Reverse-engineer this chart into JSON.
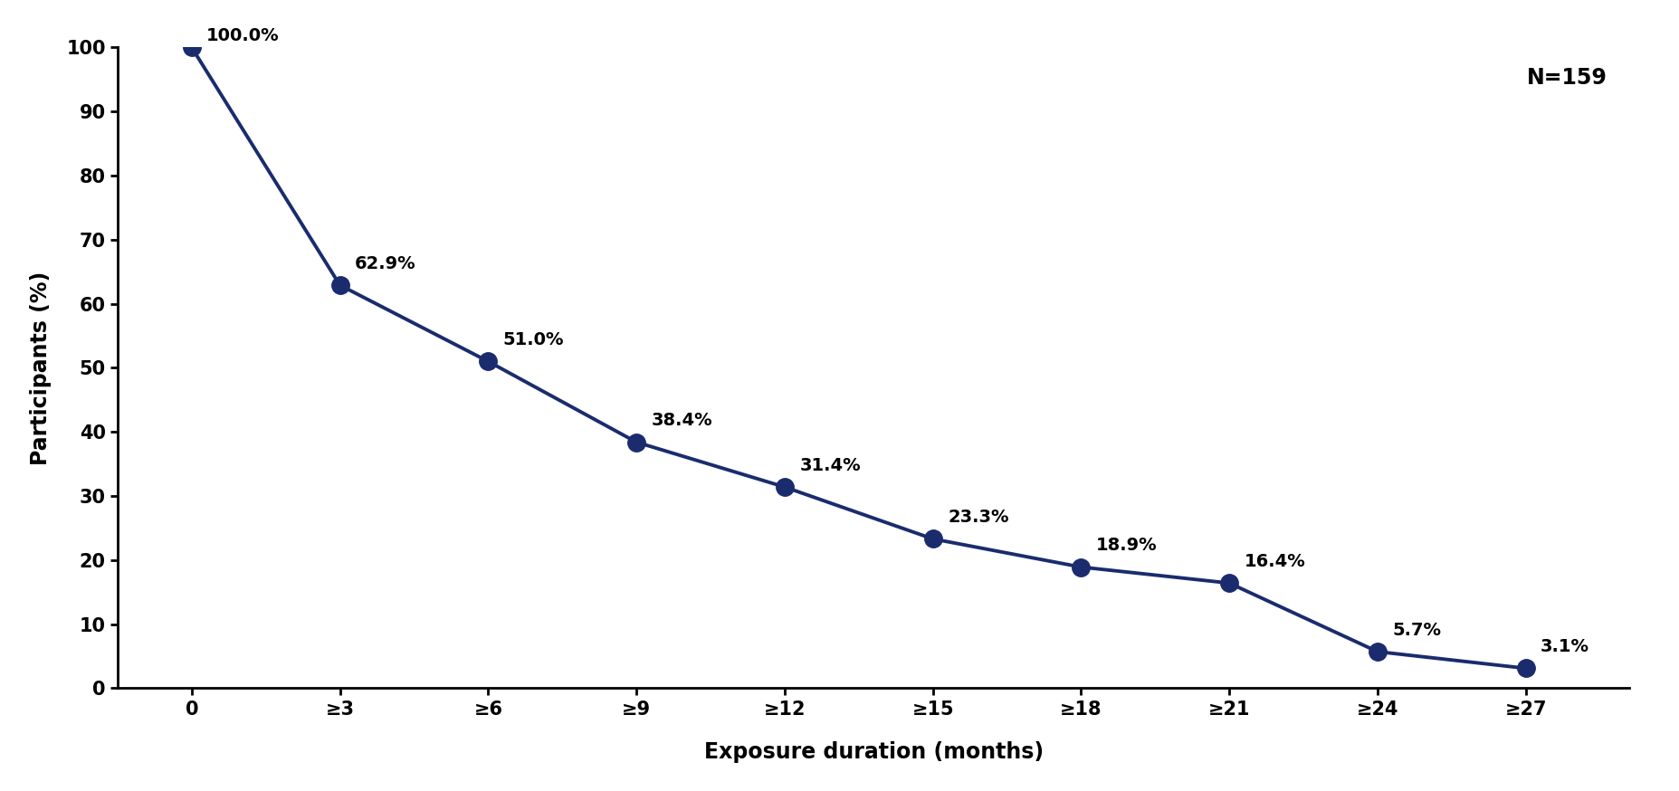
{
  "x_values": [
    0,
    1,
    2,
    3,
    4,
    5,
    6,
    7,
    8,
    9
  ],
  "y_values": [
    100.0,
    62.9,
    51.0,
    38.4,
    31.4,
    23.3,
    18.9,
    16.4,
    5.7,
    3.1
  ],
  "labels": [
    "100.0%",
    "62.9%",
    "51.0%",
    "38.4%",
    "31.4%",
    "23.3%",
    "18.9%",
    "16.4%",
    "5.7%",
    "3.1%"
  ],
  "x_tick_labels": [
    "0",
    "≥3",
    "≥6",
    "≥9",
    "≥12",
    "≥15",
    "≥18",
    "≥21",
    "≥24",
    "≥27"
  ],
  "xlabel": "Exposure duration (months)",
  "ylabel": "Participants (%)",
  "annotation": "N=159",
  "line_color": "#1a2c6e",
  "marker_color": "#1a2c6e",
  "ylim": [
    0,
    100
  ],
  "yticks": [
    0,
    10,
    20,
    30,
    40,
    50,
    60,
    70,
    80,
    90,
    100
  ],
  "label_x_offsets": [
    0.1,
    0.1,
    0.1,
    0.1,
    0.1,
    0.1,
    0.1,
    0.1,
    0.1,
    0.1
  ],
  "label_y_offsets": [
    0.5,
    2.0,
    2.0,
    2.0,
    2.0,
    2.0,
    2.0,
    2.0,
    2.0,
    2.0
  ]
}
